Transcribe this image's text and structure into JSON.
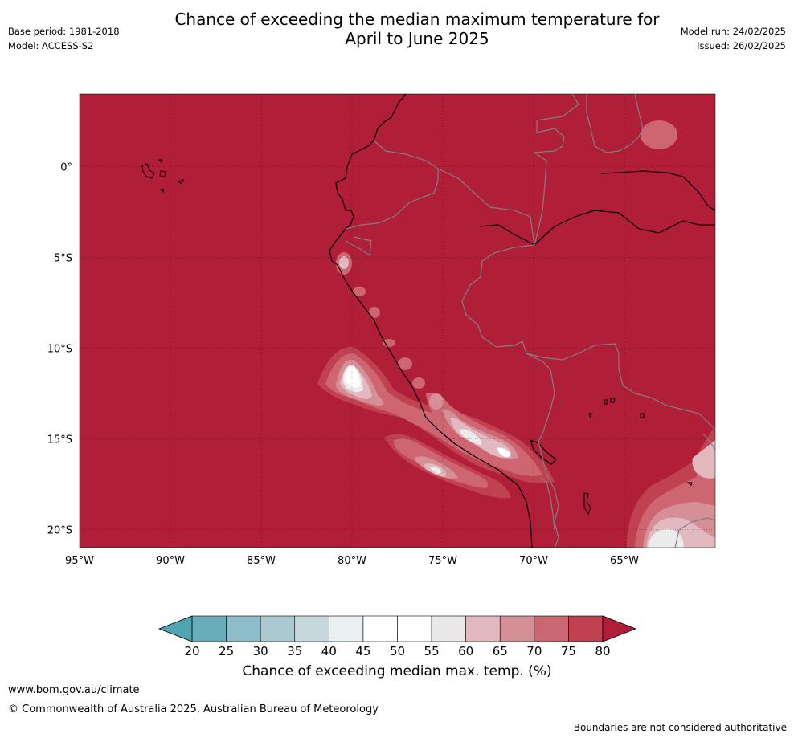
{
  "header": {
    "title_line1": "Chance of exceeding the median maximum temperature for",
    "title_line2": "April to June 2025",
    "base_period": "Base period: 1981-2018",
    "model": "Model: ACCESS-S2",
    "model_run": "Model run: 24/02/2025",
    "issued": "Issued: 26/02/2025"
  },
  "map": {
    "lon_range": [
      -95,
      -60
    ],
    "lat_range": [
      -21,
      4
    ],
    "x_ticks": [
      "95°W",
      "90°W",
      "85°W",
      "80°W",
      "75°W",
      "70°W",
      "65°W"
    ],
    "y_ticks": [
      "0°",
      "5°S",
      "10°S",
      "15°S",
      "20°S"
    ],
    "background_category": "80",
    "colors": {
      "80": "#b01e38",
      "75": "#c0414f",
      "70": "#ce6672",
      "65": "#d58f97",
      "60": "#e2b9be",
      "55": "#ececec",
      "50": "#ffffff",
      "coastline": "#000000",
      "border": "#808080"
    }
  },
  "colorbar": {
    "ticks": [
      "20",
      "25",
      "30",
      "35",
      "40",
      "45",
      "50",
      "55",
      "60",
      "65",
      "70",
      "75",
      "80"
    ],
    "colors": [
      "#6aadba",
      "#8ebcc8",
      "#aac9d0",
      "#c7d8dc",
      "#eaf0f1",
      "#ffffff",
      "#ffffff",
      "#e9e7e7",
      "#e2b9be",
      "#d58f97",
      "#ca6772",
      "#c0414f"
    ],
    "under_color": "#4fa4b2",
    "over_color": "#b01e38",
    "label": "Chance of exceeding median max. temp. (%)"
  },
  "footer": {
    "url": "www.bom.gov.au/climate",
    "copyright": "© Commonwealth of Australia 2025, Australian Bureau of Meteorology",
    "disclaimer": "Boundaries are not considered authoritative"
  }
}
